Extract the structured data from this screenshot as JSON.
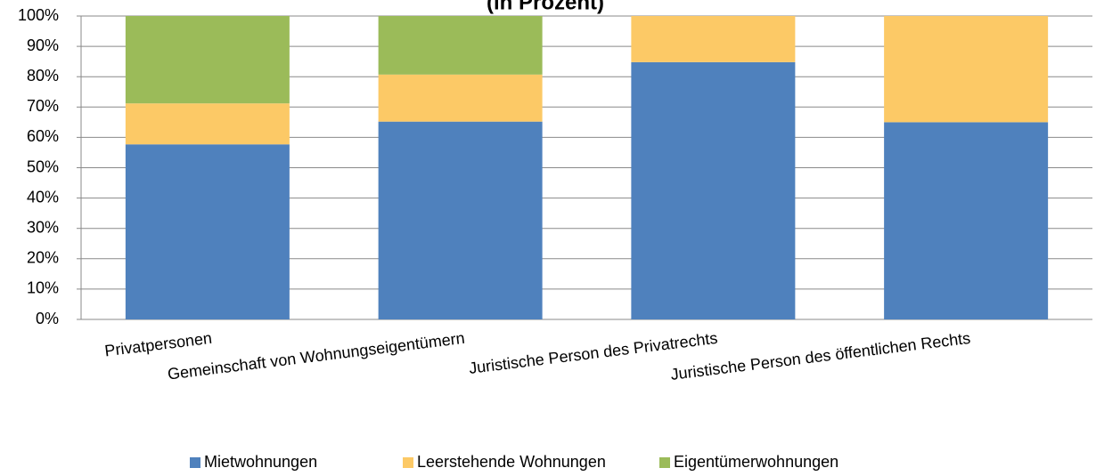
{
  "chart_data": {
    "type": "stacked_bar",
    "title": "(in Prozent)",
    "categories": [
      "Privatpersonen",
      "Gemeinschaft von Wohnungseigentümern",
      "Juristische Person des Privatrechts",
      "Juristische Person des öffentlichen Rechts"
    ],
    "series": [
      {
        "name": "Mietwohnungen",
        "color": "#4f81bd",
        "values": [
          57.7,
          65.2,
          84.8,
          65
        ]
      },
      {
        "name": "Leerstehende Wohnungen",
        "color": "#fcc966",
        "values": [
          13.5,
          15.5,
          15.2,
          35
        ]
      },
      {
        "name": "Eigentümerwohnungen",
        "color": "#9bbb59",
        "values": [
          28.8,
          19.3,
          0,
          0
        ]
      }
    ],
    "ylim": [
      0,
      100
    ],
    "yticks": [
      {
        "value": 0,
        "label": "0%"
      },
      {
        "value": 10,
        "label": "10%"
      },
      {
        "value": 20,
        "label": "20%"
      },
      {
        "value": 30,
        "label": "30%"
      },
      {
        "value": 40,
        "label": "40%"
      },
      {
        "value": 50,
        "label": "50%"
      },
      {
        "value": 60,
        "label": "60%"
      },
      {
        "value": 70,
        "label": "70%"
      },
      {
        "value": 80,
        "label": "80%"
      },
      {
        "value": 90,
        "label": "90%"
      },
      {
        "value": 100,
        "label": "100%"
      }
    ],
    "grid": true,
    "legend": "bottom"
  }
}
